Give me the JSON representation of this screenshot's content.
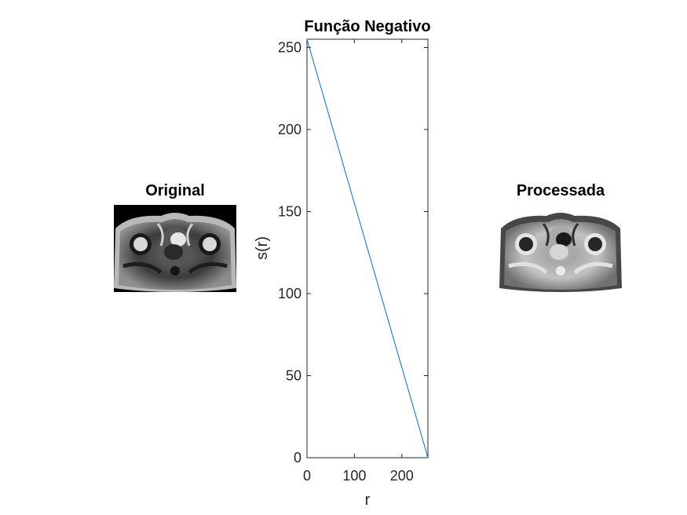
{
  "panels": {
    "original_title": "Original",
    "processed_title": "Processada"
  },
  "chart_data": {
    "type": "line",
    "title": "Função Negativo",
    "xlabel": "r",
    "ylabel": "s(r)",
    "xlim": [
      0,
      255
    ],
    "ylim": [
      0,
      255
    ],
    "xticks": [
      0,
      100,
      200
    ],
    "yticks": [
      0,
      50,
      100,
      150,
      200,
      250
    ],
    "grid": false,
    "series": [
      {
        "x": [
          0,
          255
        ],
        "y": [
          255,
          0
        ],
        "color": "#0072BD"
      }
    ]
  }
}
